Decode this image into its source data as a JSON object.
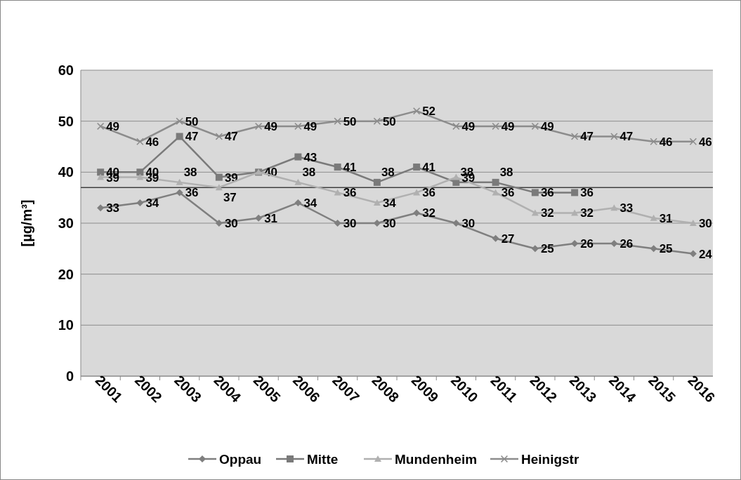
{
  "chart_data": {
    "type": "line",
    "ylabel": "[µg/m³]",
    "categories": [
      "2001",
      "2002",
      "2003",
      "2004",
      "2005",
      "2006",
      "2007",
      "2008",
      "2009",
      "2010",
      "2011",
      "2012",
      "2013",
      "2014",
      "2015",
      "2016"
    ],
    "series": [
      {
        "name": "Oppau",
        "color": "#7f7f7f",
        "marker": "diamond",
        "values": [
          33,
          34,
          36,
          30,
          31,
          34,
          30,
          30,
          32,
          30,
          27,
          25,
          26,
          26,
          25,
          24
        ]
      },
      {
        "name": "Mitte",
        "color": "#7a7a7a",
        "marker": "square",
        "values": [
          40,
          40,
          47,
          39,
          40,
          43,
          41,
          38,
          41,
          38,
          38,
          36,
          36,
          null,
          null,
          null
        ]
      },
      {
        "name": "Mundenheim",
        "color": "#b0b0b0",
        "marker": "triangle",
        "values": [
          39,
          39,
          38,
          37,
          40,
          38,
          36,
          34,
          36,
          39,
          36,
          32,
          32,
          33,
          31,
          30
        ],
        "value_labels": [
          "39",
          "39",
          "38",
          "37",
          null,
          "38",
          "36",
          "34",
          "36",
          "39",
          "36",
          "32",
          "32",
          "33",
          "31",
          "30"
        ]
      },
      {
        "name": "Heinigstr",
        "color": "#8c8c8c",
        "marker": "cross",
        "values": [
          49,
          46,
          50,
          47,
          49,
          49,
          50,
          50,
          52,
          49,
          49,
          49,
          47,
          47,
          46,
          46
        ]
      }
    ],
    "ylim": [
      0,
      60
    ],
    "yticks": [
      0,
      10,
      20,
      30,
      40,
      50,
      60
    ],
    "grid": "y",
    "legend": "bottom",
    "data_labels": true,
    "line_style": "solid",
    "ref_lines": [
      {
        "axis": "y",
        "value": 37,
        "color": "#404040"
      }
    ]
  }
}
